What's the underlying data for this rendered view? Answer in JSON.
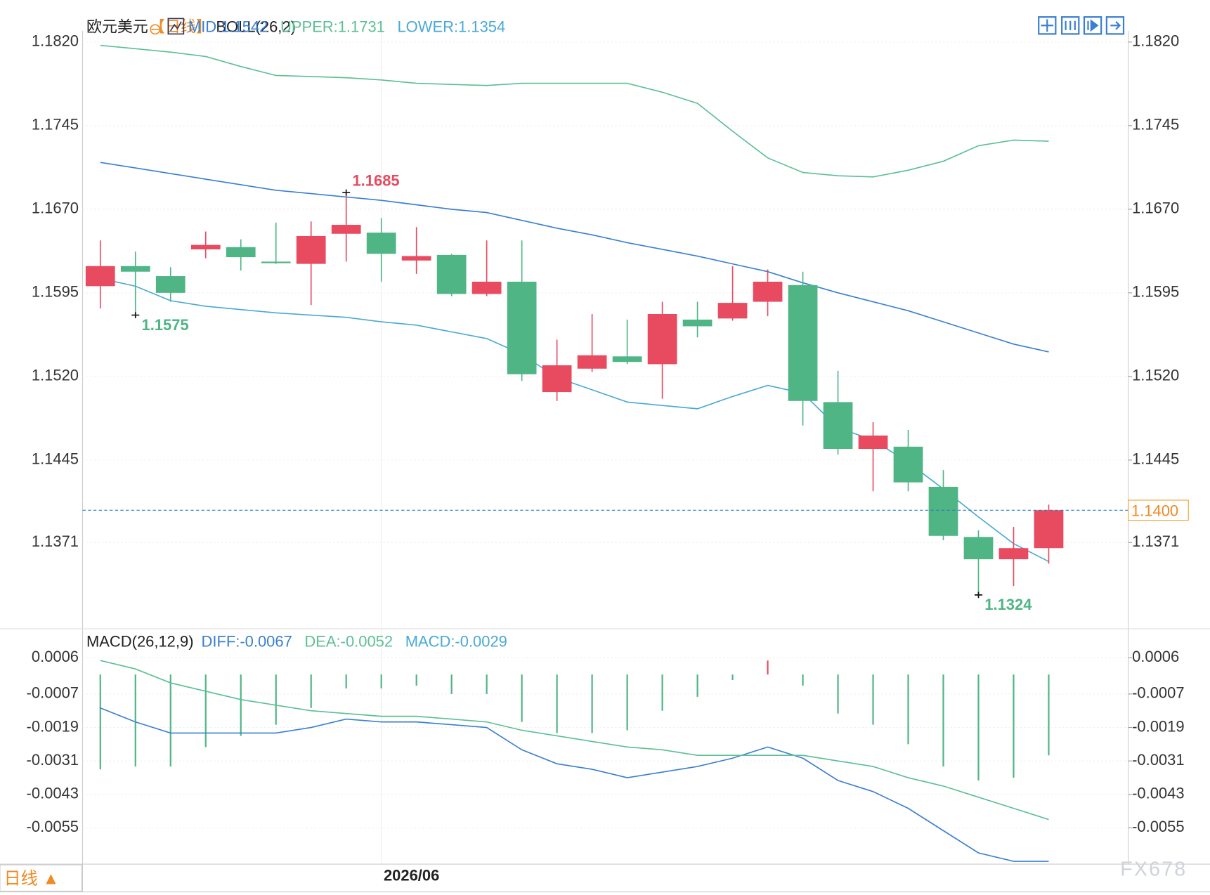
{
  "chart_data": [
    {
      "type": "candlestick",
      "title": "欧元美元",
      "period": "【日线】",
      "indicator": "BOLL(26,2)",
      "up_color": "#e84a5f",
      "down_color": "#4fb585",
      "categories": [
        null,
        null,
        null,
        null,
        null,
        null,
        null,
        null,
        "2026/06",
        null,
        null,
        null,
        null,
        null,
        null,
        null,
        null,
        null,
        null,
        null,
        null,
        null,
        null,
        null,
        null,
        null,
        null,
        null
      ],
      "ohlc": [
        [
          1.1601,
          1.1642,
          1.1581,
          1.1619
        ],
        [
          1.1619,
          1.1632,
          1.1575,
          1.1614
        ],
        [
          1.161,
          1.1618,
          1.1587,
          1.1595
        ],
        [
          1.1634,
          1.165,
          1.1626,
          1.1638
        ],
        [
          1.1636,
          1.1643,
          1.1615,
          1.1627
        ],
        [
          1.1623,
          1.1658,
          1.1621,
          1.1622
        ],
        [
          1.1621,
          1.1659,
          1.1584,
          1.1646
        ],
        [
          1.1648,
          1.1685,
          1.1623,
          1.1656
        ],
        [
          1.1649,
          1.1662,
          1.1605,
          1.163
        ],
        [
          1.1624,
          1.1654,
          1.1612,
          1.1628
        ],
        [
          1.1629,
          1.163,
          1.1592,
          1.1594
        ],
        [
          1.1594,
          1.1642,
          1.1592,
          1.1605
        ],
        [
          1.1605,
          1.1642,
          1.1516,
          1.1522
        ],
        [
          1.1506,
          1.1553,
          1.1498,
          1.153
        ],
        [
          1.1527,
          1.1576,
          1.1524,
          1.1539
        ],
        [
          1.1538,
          1.1571,
          1.1531,
          1.1533
        ],
        [
          1.1531,
          1.1587,
          1.15,
          1.1576
        ],
        [
          1.1571,
          1.1587,
          1.1555,
          1.1565
        ],
        [
          1.1572,
          1.1619,
          1.157,
          1.1586
        ],
        [
          1.1587,
          1.1616,
          1.1574,
          1.1605
        ],
        [
          1.1602,
          1.1614,
          1.1476,
          1.1498
        ],
        [
          1.1497,
          1.1525,
          1.145,
          1.1455
        ],
        [
          1.1455,
          1.1479,
          1.1417,
          1.1467
        ],
        [
          1.1457,
          1.1472,
          1.1417,
          1.1425
        ],
        [
          1.1421,
          1.1436,
          1.1373,
          1.1377
        ],
        [
          1.1376,
          1.1382,
          1.1324,
          1.1356
        ],
        [
          1.1356,
          1.1385,
          1.1332,
          1.1366
        ],
        [
          1.1366,
          1.1405,
          1.1352,
          1.14
        ]
      ],
      "series": [
        {
          "name": "MID:1.1542",
          "color": "#3a7fd0",
          "values": [
            1.1712,
            1.1707,
            1.1702,
            1.1697,
            1.1692,
            1.1687,
            1.1684,
            1.1681,
            1.1678,
            1.1674,
            1.167,
            1.1667,
            1.166,
            1.1653,
            1.1647,
            1.164,
            1.1634,
            1.1628,
            1.1621,
            1.1614,
            1.1604,
            1.1595,
            1.1587,
            1.1579,
            1.1569,
            1.1559,
            1.1549,
            1.1542
          ]
        },
        {
          "name": "UPPER:1.1731",
          "color": "#5cbf94",
          "values": [
            1.1817,
            1.1814,
            1.1811,
            1.1807,
            1.1798,
            1.179,
            1.1789,
            1.1788,
            1.1786,
            1.1783,
            1.1782,
            1.1781,
            1.1783,
            1.1783,
            1.1783,
            1.1783,
            1.1775,
            1.1765,
            1.174,
            1.1716,
            1.1703,
            1.17,
            1.1699,
            1.1705,
            1.1713,
            1.1727,
            1.1732,
            1.1731
          ]
        },
        {
          "name": "LOWER:1.1354",
          "color": "#49a9d6",
          "values": [
            1.1608,
            1.1601,
            1.1588,
            1.1583,
            1.158,
            1.1577,
            1.1575,
            1.1573,
            1.1569,
            1.1566,
            1.156,
            1.1554,
            1.154,
            1.1519,
            1.1508,
            1.1497,
            1.1494,
            1.1491,
            1.1502,
            1.1512,
            1.1505,
            1.1474,
            1.1463,
            1.1443,
            1.1419,
            1.1394,
            1.137,
            1.1354
          ]
        }
      ],
      "ylim": [
        1.1295,
        1.183
      ],
      "yticks": [
        {
          "value": 1.182,
          "label": "1.1820"
        },
        {
          "value": 1.1745,
          "label": "1.1745"
        },
        {
          "value": 1.167,
          "label": "1.1670"
        },
        {
          "value": 1.1595,
          "label": "1.1595"
        },
        {
          "value": 1.152,
          "label": "1.1520"
        },
        {
          "value": 1.1445,
          "label": "1.1445"
        },
        {
          "value": 1.1371,
          "label": "1.1371"
        }
      ],
      "annotations": [
        1.1685,
        1.1575,
        1.1324
      ],
      "last_price": {
        "value": 1.14,
        "label": "1.1400"
      },
      "grid": true
    },
    {
      "type": "macd",
      "title": "MACD(26,12,9)",
      "up_color": "#e84a5f",
      "down_color": "#4fb585",
      "series": [
        {
          "name": "DIFF:-0.0067",
          "color": "#3a7fd0",
          "type": "line",
          "values": [
            -0.0012,
            -0.0017,
            -0.0021,
            -0.0021,
            -0.0021,
            -0.0021,
            -0.0019,
            -0.0016,
            -0.0017,
            -0.0017,
            -0.0018,
            -0.0019,
            -0.0027,
            -0.0032,
            -0.0034,
            -0.0037,
            -0.0035,
            -0.0033,
            -0.003,
            -0.0026,
            -0.003,
            -0.0038,
            -0.0042,
            -0.0048,
            -0.0056,
            -0.0064,
            -0.0067,
            -0.0067
          ]
        },
        {
          "name": "DEA:-0.0052",
          "color": "#5cbf94",
          "type": "line",
          "values": [
            0.0005,
            0.0002,
            -0.0003,
            -0.0006,
            -0.0009,
            -0.0011,
            -0.0013,
            -0.0014,
            -0.0015,
            -0.0015,
            -0.0016,
            -0.0017,
            -0.002,
            -0.0022,
            -0.0024,
            -0.0026,
            -0.0027,
            -0.0029,
            -0.0029,
            -0.0029,
            -0.0029,
            -0.0031,
            -0.0033,
            -0.0037,
            -0.004,
            -0.0044,
            -0.0048,
            -0.0052
          ]
        },
        {
          "name": "MACD:-0.0029",
          "color": "#49a9d6",
          "type": "bar",
          "values": [
            -0.0034,
            -0.0033,
            -0.0033,
            -0.0026,
            -0.0022,
            -0.0018,
            -0.0012,
            -0.0005,
            -0.0005,
            -0.0004,
            -0.0007,
            -0.0007,
            -0.0017,
            -0.0021,
            -0.0021,
            -0.002,
            -0.0013,
            -0.0008,
            -0.0002,
            0.0005,
            -0.0004,
            -0.0014,
            -0.0018,
            -0.0025,
            -0.0033,
            -0.0038,
            -0.0037,
            -0.0029
          ]
        }
      ],
      "ylim": [
        -0.0068,
        0.0015
      ],
      "yticks": [
        0.0006,
        -0.0007,
        -0.0019,
        -0.0031,
        -0.0043,
        -0.0055
      ],
      "grid": true
    }
  ],
  "period_selector": "日线 ▲",
  "watermark": "FX678"
}
